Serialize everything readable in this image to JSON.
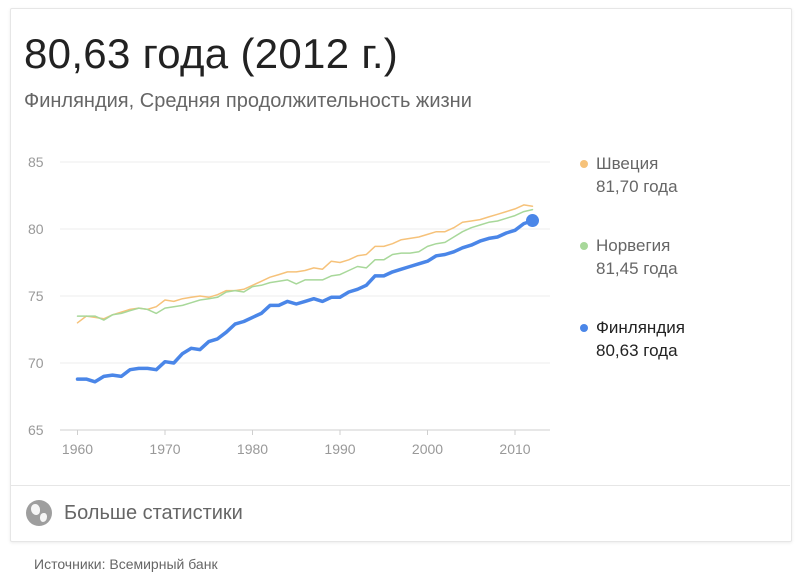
{
  "card": {
    "headline": "80,63 года (2012 г.)",
    "subtitle": "Финляндия, Средняя продолжительность жизни",
    "more_link": "Больше статистики",
    "more_icon": "globe-icon"
  },
  "footer": {
    "sources": "Источники: Всемирный банк"
  },
  "legend": [
    {
      "name": "Швеция",
      "value": "81,70 года",
      "color": "#f6c27a"
    },
    {
      "name": "Норвегия",
      "value": "81,45 года",
      "color": "#a8d89a"
    },
    {
      "name": "Финляндия",
      "value": "80,63 года",
      "color": "#4a86e8"
    }
  ],
  "chart_data": {
    "type": "line",
    "title": "",
    "xlabel": "",
    "ylabel": "",
    "xlim": [
      1960,
      2012
    ],
    "ylim": [
      65,
      85
    ],
    "x_ticks": [
      "1960",
      "1970",
      "1980",
      "1990",
      "2000",
      "2010"
    ],
    "y_ticks": [
      "85",
      "80",
      "75",
      "70",
      "65"
    ],
    "grid": "horizontal",
    "legend_position": "right",
    "x": [
      1960,
      1961,
      1962,
      1963,
      1964,
      1965,
      1966,
      1967,
      1968,
      1969,
      1970,
      1971,
      1972,
      1973,
      1974,
      1975,
      1976,
      1977,
      1978,
      1979,
      1980,
      1981,
      1982,
      1983,
      1984,
      1985,
      1986,
      1987,
      1988,
      1989,
      1990,
      1991,
      1992,
      1993,
      1994,
      1995,
      1996,
      1997,
      1998,
      1999,
      2000,
      2001,
      2002,
      2003,
      2004,
      2005,
      2006,
      2007,
      2008,
      2009,
      2010,
      2011,
      2012
    ],
    "series": [
      {
        "name": "Швеция",
        "color": "#f6c27a",
        "highlighted": false,
        "values": [
          73.0,
          73.5,
          73.4,
          73.3,
          73.6,
          73.8,
          74.0,
          74.1,
          74.0,
          74.2,
          74.7,
          74.6,
          74.8,
          74.9,
          75.0,
          74.9,
          75.1,
          75.4,
          75.4,
          75.5,
          75.8,
          76.1,
          76.4,
          76.6,
          76.8,
          76.8,
          76.9,
          77.1,
          77.0,
          77.6,
          77.5,
          77.7,
          78.0,
          78.1,
          78.7,
          78.7,
          78.9,
          79.2,
          79.3,
          79.4,
          79.6,
          79.8,
          79.8,
          80.1,
          80.5,
          80.6,
          80.7,
          80.9,
          81.1,
          81.3,
          81.5,
          81.8,
          81.7
        ]
      },
      {
        "name": "Норвегия",
        "color": "#a8d89a",
        "highlighted": false,
        "values": [
          73.5,
          73.5,
          73.5,
          73.2,
          73.6,
          73.7,
          73.9,
          74.1,
          74.0,
          73.7,
          74.1,
          74.2,
          74.3,
          74.5,
          74.7,
          74.8,
          74.9,
          75.3,
          75.4,
          75.3,
          75.7,
          75.8,
          76.0,
          76.1,
          76.2,
          75.9,
          76.2,
          76.2,
          76.2,
          76.5,
          76.6,
          76.9,
          77.2,
          77.1,
          77.7,
          77.7,
          78.1,
          78.2,
          78.2,
          78.3,
          78.7,
          78.9,
          79.0,
          79.4,
          79.8,
          80.1,
          80.3,
          80.5,
          80.6,
          80.8,
          81.0,
          81.3,
          81.45
        ]
      },
      {
        "name": "Финляндия",
        "color": "#4a86e8",
        "highlighted": true,
        "values": [
          68.8,
          68.8,
          68.6,
          69.0,
          69.1,
          69.0,
          69.5,
          69.6,
          69.6,
          69.5,
          70.1,
          70.0,
          70.7,
          71.1,
          71.0,
          71.6,
          71.8,
          72.3,
          72.9,
          73.1,
          73.4,
          73.7,
          74.3,
          74.3,
          74.6,
          74.4,
          74.6,
          74.8,
          74.6,
          74.9,
          74.9,
          75.3,
          75.5,
          75.8,
          76.5,
          76.5,
          76.8,
          77.0,
          77.2,
          77.4,
          77.6,
          78.0,
          78.1,
          78.3,
          78.6,
          78.8,
          79.1,
          79.3,
          79.4,
          79.7,
          79.9,
          80.4,
          80.63
        ]
      }
    ]
  }
}
